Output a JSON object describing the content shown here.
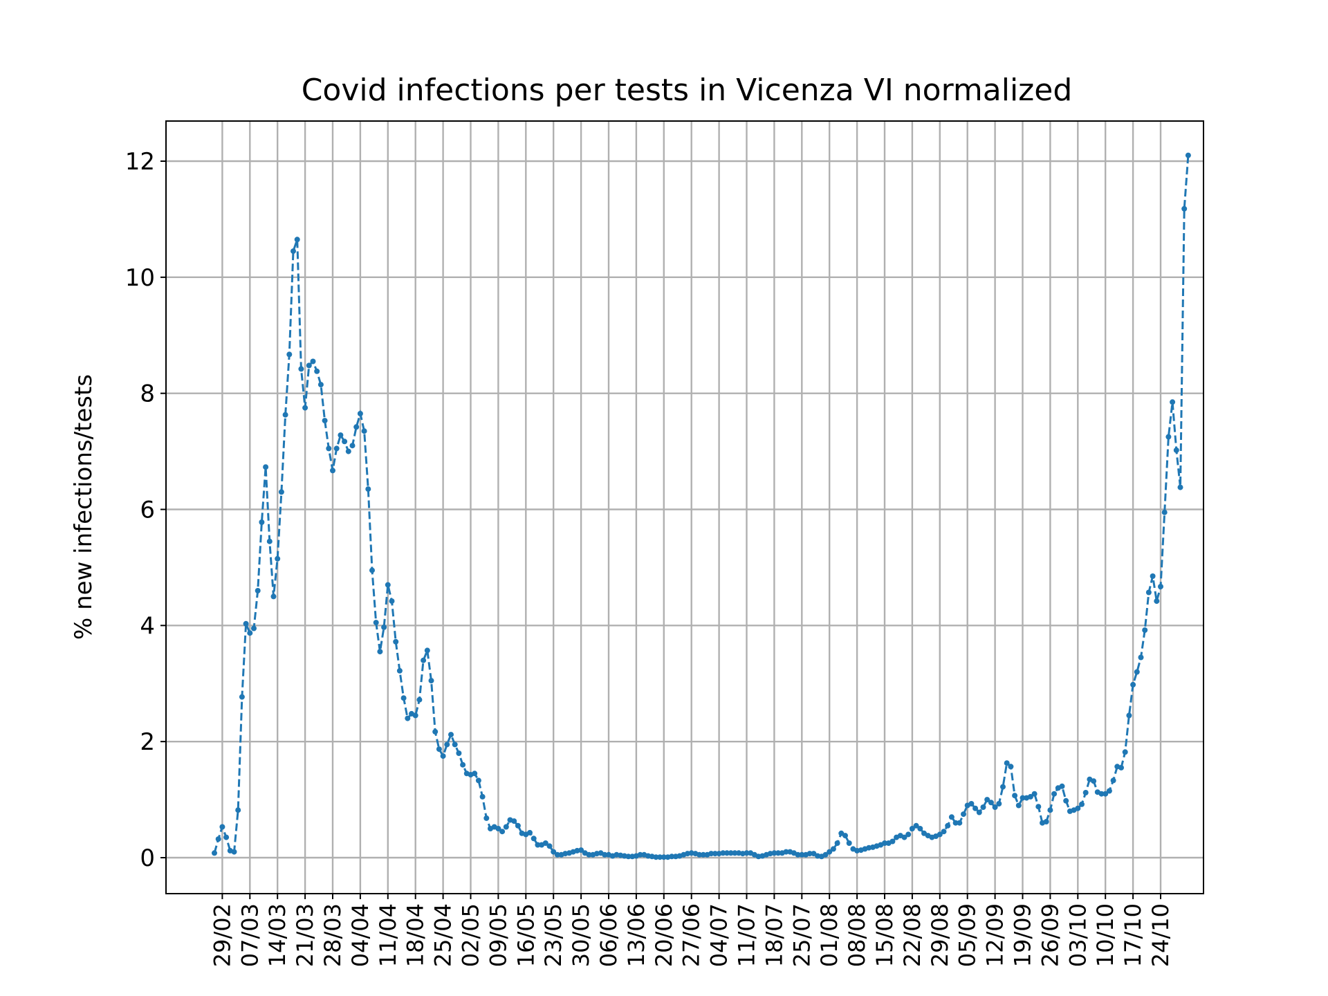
{
  "chart_data": {
    "type": "line",
    "title": "Covid infections per tests in Vicenza VI normalized",
    "xlabel": "",
    "ylabel": "% new infections/tests",
    "ylim": [
      -0.6,
      12.7
    ],
    "yticks": [
      0,
      2,
      4,
      6,
      8,
      10,
      12
    ],
    "grid": true,
    "legend": "none",
    "color": "#1f77b4",
    "line_style": "dashed",
    "marker": "dot",
    "x_start": "27/02",
    "x_tick_labels": [
      "29/02",
      "07/03",
      "14/03",
      "21/03",
      "28/03",
      "04/04",
      "11/04",
      "18/04",
      "25/04",
      "02/05",
      "09/05",
      "16/05",
      "23/05",
      "30/05",
      "06/06",
      "13/06",
      "20/06",
      "27/06",
      "04/07",
      "11/07",
      "18/07",
      "25/07",
      "01/08",
      "08/08",
      "15/08",
      "22/08",
      "29/08",
      "05/09",
      "12/09",
      "19/09",
      "26/09",
      "03/10",
      "10/10",
      "17/10",
      "24/10"
    ],
    "series": [
      {
        "values": [
          0.08,
          0.32,
          0.53,
          0.35,
          0.12,
          0.1,
          0.82,
          2.77,
          4.03,
          3.87,
          3.95,
          4.6,
          5.78,
          6.73,
          5.45,
          4.5,
          5.15,
          6.3,
          7.63,
          8.67,
          10.45,
          10.65,
          8.42,
          7.75,
          8.48,
          8.55,
          8.38,
          8.15,
          7.53,
          7.05,
          6.67,
          7.05,
          7.28,
          7.17,
          7.0,
          7.1,
          7.42,
          7.65,
          7.35,
          6.35,
          4.95,
          4.05,
          3.55,
          3.97,
          4.7,
          4.42,
          3.72,
          3.22,
          2.75,
          2.4,
          2.48,
          2.45,
          2.72,
          3.4,
          3.57,
          3.05,
          2.17,
          1.87,
          1.75,
          1.95,
          2.12,
          1.95,
          1.8,
          1.6,
          1.45,
          1.43,
          1.45,
          1.33,
          1.05,
          0.68,
          0.5,
          0.53,
          0.5,
          0.45,
          0.53,
          0.65,
          0.63,
          0.55,
          0.42,
          0.4,
          0.43,
          0.33,
          0.22,
          0.22,
          0.25,
          0.2,
          0.1,
          0.05,
          0.05,
          0.07,
          0.08,
          0.1,
          0.12,
          0.13,
          0.08,
          0.05,
          0.05,
          0.07,
          0.08,
          0.05,
          0.05,
          0.03,
          0.05,
          0.04,
          0.03,
          0.02,
          0.02,
          0.03,
          0.05,
          0.05,
          0.03,
          0.02,
          0.01,
          0.01,
          0.01,
          0.01,
          0.02,
          0.02,
          0.03,
          0.05,
          0.07,
          0.08,
          0.07,
          0.05,
          0.05,
          0.05,
          0.07,
          0.07,
          0.07,
          0.08,
          0.08,
          0.08,
          0.08,
          0.08,
          0.07,
          0.08,
          0.08,
          0.05,
          0.02,
          0.03,
          0.05,
          0.07,
          0.08,
          0.08,
          0.08,
          0.1,
          0.1,
          0.08,
          0.05,
          0.05,
          0.05,
          0.07,
          0.07,
          0.03,
          0.02,
          0.05,
          0.1,
          0.15,
          0.25,
          0.42,
          0.38,
          0.25,
          0.15,
          0.12,
          0.13,
          0.15,
          0.17,
          0.18,
          0.2,
          0.22,
          0.25,
          0.25,
          0.28,
          0.35,
          0.38,
          0.35,
          0.4,
          0.5,
          0.55,
          0.5,
          0.42,
          0.38,
          0.35,
          0.37,
          0.4,
          0.45,
          0.55,
          0.7,
          0.6,
          0.6,
          0.75,
          0.9,
          0.93,
          0.85,
          0.78,
          0.87,
          1.0,
          0.95,
          0.87,
          0.93,
          1.22,
          1.63,
          1.57,
          1.07,
          0.9,
          1.03,
          1.03,
          1.05,
          1.1,
          0.88,
          0.6,
          0.62,
          0.82,
          1.1,
          1.2,
          1.23,
          0.98,
          0.8,
          0.82,
          0.85,
          0.92,
          1.12,
          1.35,
          1.32,
          1.13,
          1.1,
          1.1,
          1.15,
          1.33,
          1.57,
          1.55,
          1.82,
          2.45,
          2.98,
          3.2,
          3.45,
          3.92,
          4.57,
          4.85,
          4.42,
          4.67,
          5.95,
          7.25,
          7.85,
          7.02,
          6.38,
          11.18,
          12.1
        ]
      }
    ]
  }
}
